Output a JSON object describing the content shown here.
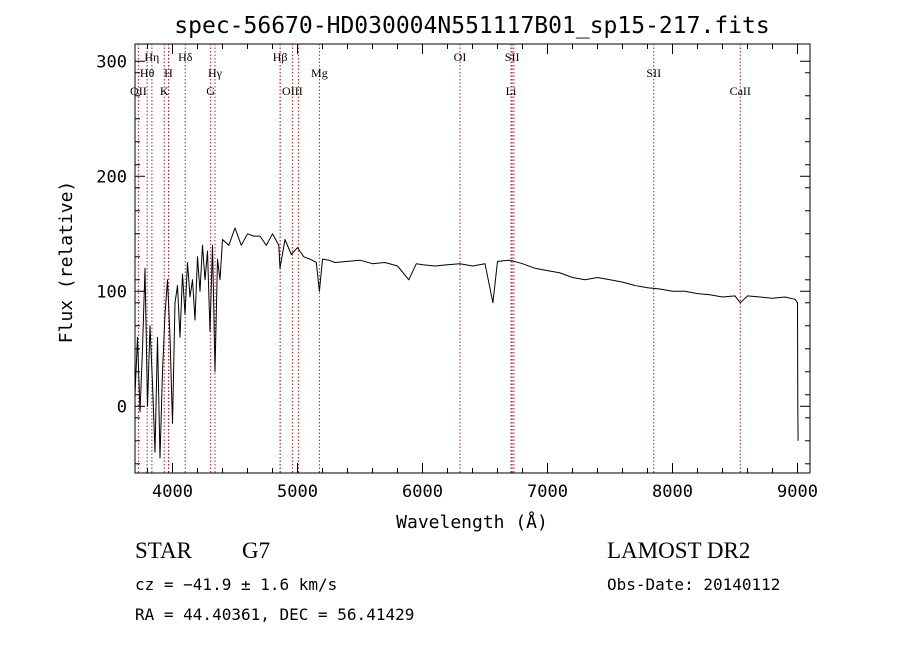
{
  "chart_data": {
    "type": "line",
    "title": "spec-56670-HD030004N551117B01_sp15-217.fits",
    "xlabel": "Wavelength (Å)",
    "ylabel": "Flux (relative)",
    "xlim": [
      3700,
      9100
    ],
    "ylim": [
      -58,
      315
    ],
    "xticks": [
      4000,
      5000,
      6000,
      7000,
      8000,
      9000
    ],
    "yticks": [
      0,
      100,
      200,
      300
    ],
    "grid": false,
    "series": [
      {
        "x": [
          3700,
          3720,
          3740,
          3760,
          3780,
          3800,
          3820,
          3840,
          3860,
          3880,
          3900,
          3920,
          3940,
          3960,
          3980,
          4000,
          4020,
          4040,
          4060,
          4080,
          4100,
          4120,
          4140,
          4160,
          4180,
          4200,
          4220,
          4240,
          4260,
          4280,
          4300,
          4320,
          4340,
          4360,
          4380,
          4400,
          4450,
          4500,
          4550,
          4600,
          4650,
          4700,
          4750,
          4800,
          4850,
          4860,
          4900,
          4950,
          5000,
          5050,
          5100,
          5150,
          5175,
          5200,
          5250,
          5300,
          5400,
          5500,
          5600,
          5700,
          5800,
          5890,
          5950,
          6000,
          6100,
          6200,
          6300,
          6400,
          6500,
          6563,
          6600,
          6700,
          6800,
          6900,
          7000,
          7100,
          7200,
          7300,
          7400,
          7500,
          7600,
          7700,
          7800,
          7900,
          8000,
          8100,
          8200,
          8300,
          8400,
          8500,
          8542,
          8600,
          8700,
          8800,
          8900,
          8980,
          9000,
          9002,
          9005
        ],
        "y": [
          10,
          60,
          -5,
          50,
          120,
          0,
          70,
          20,
          -40,
          60,
          -45,
          30,
          80,
          110,
          60,
          -15,
          90,
          105,
          60,
          115,
          80,
          125,
          95,
          110,
          75,
          130,
          100,
          140,
          110,
          135,
          65,
          140,
          30,
          128,
          110,
          145,
          140,
          155,
          140,
          150,
          148,
          148,
          140,
          150,
          140,
          120,
          145,
          132,
          138,
          130,
          128,
          125,
          100,
          128,
          127,
          125,
          126,
          127,
          124,
          125,
          122,
          110,
          124,
          123,
          122,
          123,
          124,
          122,
          124,
          90,
          126,
          127,
          124,
          120,
          118,
          116,
          112,
          110,
          112,
          110,
          108,
          105,
          103,
          102,
          100,
          100,
          98,
          97,
          95,
          96,
          90,
          96,
          95,
          94,
          95,
          93,
          90,
          0,
          -30
        ]
      }
    ],
    "annotations": [
      {
        "label": "Hη",
        "x": 3835,
        "row": 1
      },
      {
        "label": "Hθ",
        "x": 3797,
        "row": 2
      },
      {
        "label": "OII",
        "x": 3727,
        "row": 3
      },
      {
        "label": "H",
        "x": 3968,
        "row": 2
      },
      {
        "label": "K",
        "x": 3934,
        "row": 3
      },
      {
        "label": "Hδ",
        "x": 4102,
        "row": 1
      },
      {
        "label": "Hγ",
        "x": 4340,
        "row": 2
      },
      {
        "label": "G",
        "x": 4305,
        "row": 3
      },
      {
        "label": "Hβ",
        "x": 4861,
        "row": 1
      },
      {
        "label": "Mg",
        "x": 5175,
        "row": 2
      },
      {
        "label": "OIII",
        "x": 4959,
        "row": 3
      },
      {
        "label": "OI",
        "x": 6300,
        "row": 1
      },
      {
        "label": "SII",
        "x": 6717,
        "row": 1
      },
      {
        "label": "Li",
        "x": 6708,
        "row": 3
      },
      {
        "label": "SII",
        "x": 7850,
        "row": 2
      },
      {
        "label": "CaII",
        "x": 8542,
        "row": 3
      }
    ],
    "extra_lines": [
      3970,
      4861,
      5007,
      6731
    ]
  },
  "info": {
    "class_label": "STAR",
    "subclass": "G7",
    "survey": "LAMOST DR2",
    "cz": "cz = −41.9 ± 1.6 km/s",
    "obs_date": "Obs-Date: 20140112",
    "radec": "RA =  44.40361, DEC =  56.41429"
  },
  "colors": {
    "line": "#000000",
    "marker_lines": "#aa2222",
    "background": "#ffffff"
  }
}
